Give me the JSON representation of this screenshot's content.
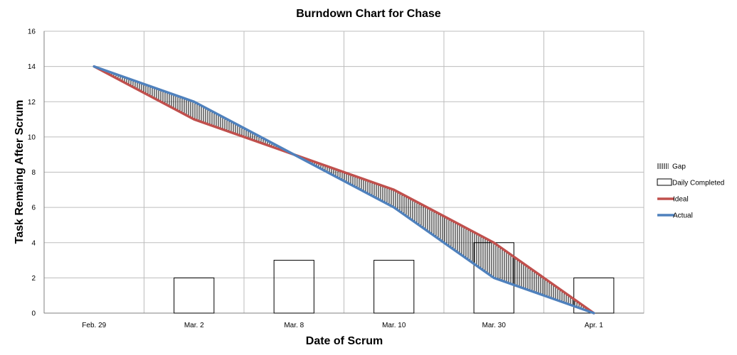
{
  "chart_data": {
    "type": "line",
    "title": "Burndown Chart for Chase",
    "xlabel": "Date of Scrum",
    "ylabel": "Task Remaing After Scrum",
    "categories": [
      "Feb. 29",
      "Mar. 2",
      "Mar. 8",
      "Mar. 10",
      "Mar. 30",
      "Apr. 1"
    ],
    "ylim": [
      0,
      16
    ],
    "yticks": [
      0,
      2,
      4,
      6,
      8,
      10,
      12,
      14,
      16
    ],
    "grid": true,
    "legend_position": "right",
    "series": [
      {
        "name": "Gap",
        "kind": "hatched-area",
        "color": "#000000"
      },
      {
        "name": "Daily Completed",
        "kind": "bar",
        "values": [
          0,
          2,
          3,
          3,
          4,
          2
        ],
        "color": "#ffffff",
        "edge_color": "#000000"
      },
      {
        "name": "Ideal",
        "kind": "line",
        "x": [
          0,
          1,
          2,
          3,
          4,
          5
        ],
        "values": [
          14,
          11,
          9,
          7,
          4,
          0
        ],
        "color": "#c0504d"
      },
      {
        "name": "Actual",
        "kind": "line",
        "x": [
          0,
          1,
          2,
          3,
          4,
          5
        ],
        "values": [
          14,
          12,
          9,
          6,
          2,
          0
        ],
        "color": "#4f81bd"
      }
    ]
  }
}
